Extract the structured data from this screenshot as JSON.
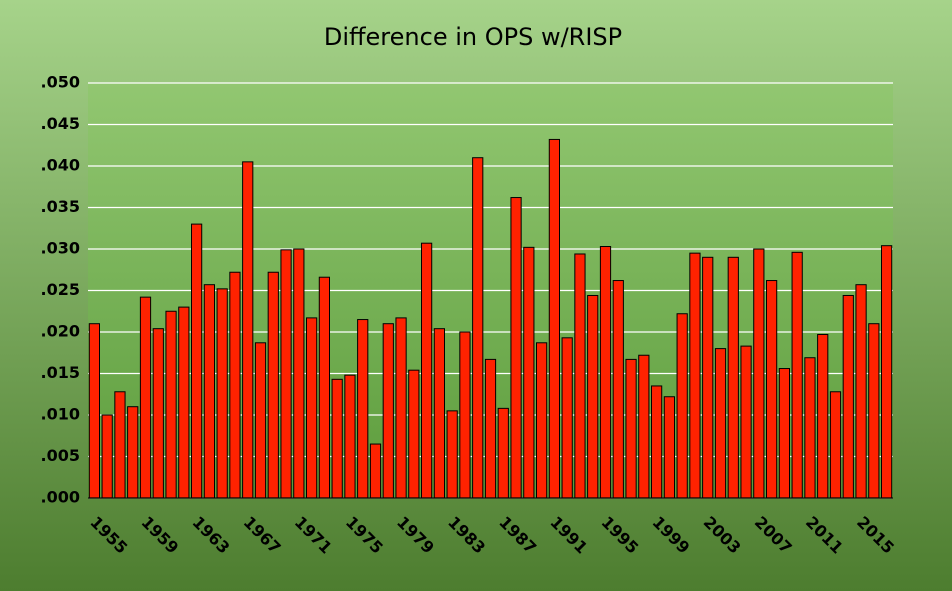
{
  "chart_data": {
    "type": "bar",
    "title": "Difference in OPS w/RISP",
    "categories": [
      "1955",
      null,
      null,
      null,
      "1959",
      null,
      null,
      null,
      "1963",
      null,
      null,
      null,
      "1967",
      null,
      null,
      null,
      "1971",
      null,
      null,
      null,
      "1975",
      null,
      null,
      null,
      "1979",
      null,
      null,
      null,
      "1983",
      null,
      null,
      null,
      "1987",
      null,
      null,
      null,
      "1991",
      null,
      null,
      null,
      "1995",
      null,
      null,
      null,
      "1999",
      null,
      null,
      null,
      "2003",
      null,
      null,
      null,
      "2007",
      null,
      null,
      null,
      "2011",
      null,
      null,
      null,
      "2015",
      null,
      null
    ],
    "values": [
      0.021,
      0.01,
      0.0128,
      0.011,
      0.0242,
      0.0204,
      0.0225,
      0.023,
      0.033,
      0.0257,
      0.0252,
      0.0272,
      0.0405,
      0.0187,
      0.0272,
      0.0299,
      0.03,
      0.0217,
      0.0266,
      0.0143,
      0.0148,
      0.0215,
      0.0065,
      0.021,
      0.0217,
      0.0154,
      0.0307,
      0.0204,
      0.0105,
      0.02,
      0.041,
      0.0167,
      0.0108,
      0.0362,
      0.0302,
      0.0187,
      0.0432,
      0.0193,
      0.0294,
      0.0244,
      0.0303,
      0.0262,
      0.0167,
      0.0172,
      0.0135,
      0.0122,
      0.0222,
      0.0295,
      0.029,
      0.018,
      0.029,
      0.0183,
      0.03,
      0.0262,
      0.0156,
      0.0296,
      0.0169,
      0.0197,
      0.0128,
      0.0244,
      0.0257,
      0.021,
      0.0304
    ],
    "color": "#ff2200",
    "ylim": [
      0,
      0.05
    ],
    "yticks": [
      {
        "value": 0,
        "label": ".000"
      },
      {
        "value": 0.005,
        "label": ".005"
      },
      {
        "value": 0.01,
        "label": ".010"
      },
      {
        "value": 0.015,
        "label": ".015"
      },
      {
        "value": 0.02,
        "label": ".020"
      },
      {
        "value": 0.025,
        "label": ".025"
      },
      {
        "value": 0.03,
        "label": ".030"
      },
      {
        "value": 0.035,
        "label": ".035"
      },
      {
        "value": 0.04,
        "label": ".040"
      },
      {
        "value": 0.045,
        "label": ".045"
      },
      {
        "value": 0.05,
        "label": ".050"
      }
    ],
    "grid": true
  }
}
